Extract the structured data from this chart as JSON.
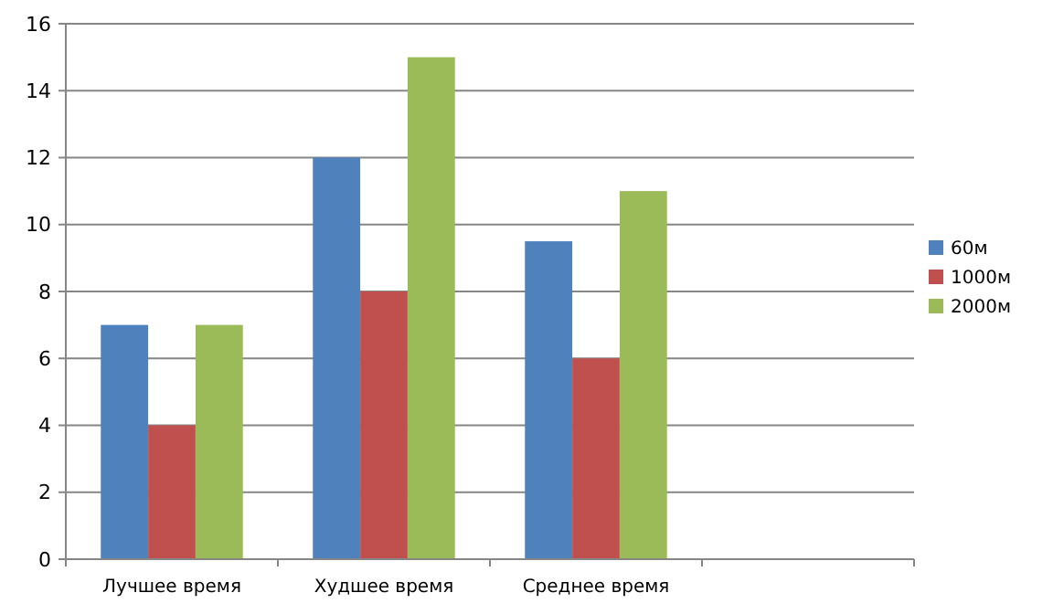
{
  "chart_data": {
    "type": "bar",
    "categories": [
      "Лучшее время",
      "Худшее время",
      "Среднее время",
      null
    ],
    "series": [
      {
        "name": "60м",
        "color": "#4f81bd",
        "values": [
          7,
          12,
          9.5,
          null
        ]
      },
      {
        "name": "1000м",
        "color": "#c0504d",
        "values": [
          4,
          8,
          6,
          null
        ]
      },
      {
        "name": "2000м",
        "color": "#9bbb59",
        "values": [
          7,
          15,
          11,
          null
        ]
      }
    ],
    "ylim": [
      0,
      16
    ],
    "yticks": [
      0,
      2,
      4,
      6,
      8,
      10,
      12,
      14,
      16
    ],
    "grid": "y",
    "legend": "right"
  }
}
